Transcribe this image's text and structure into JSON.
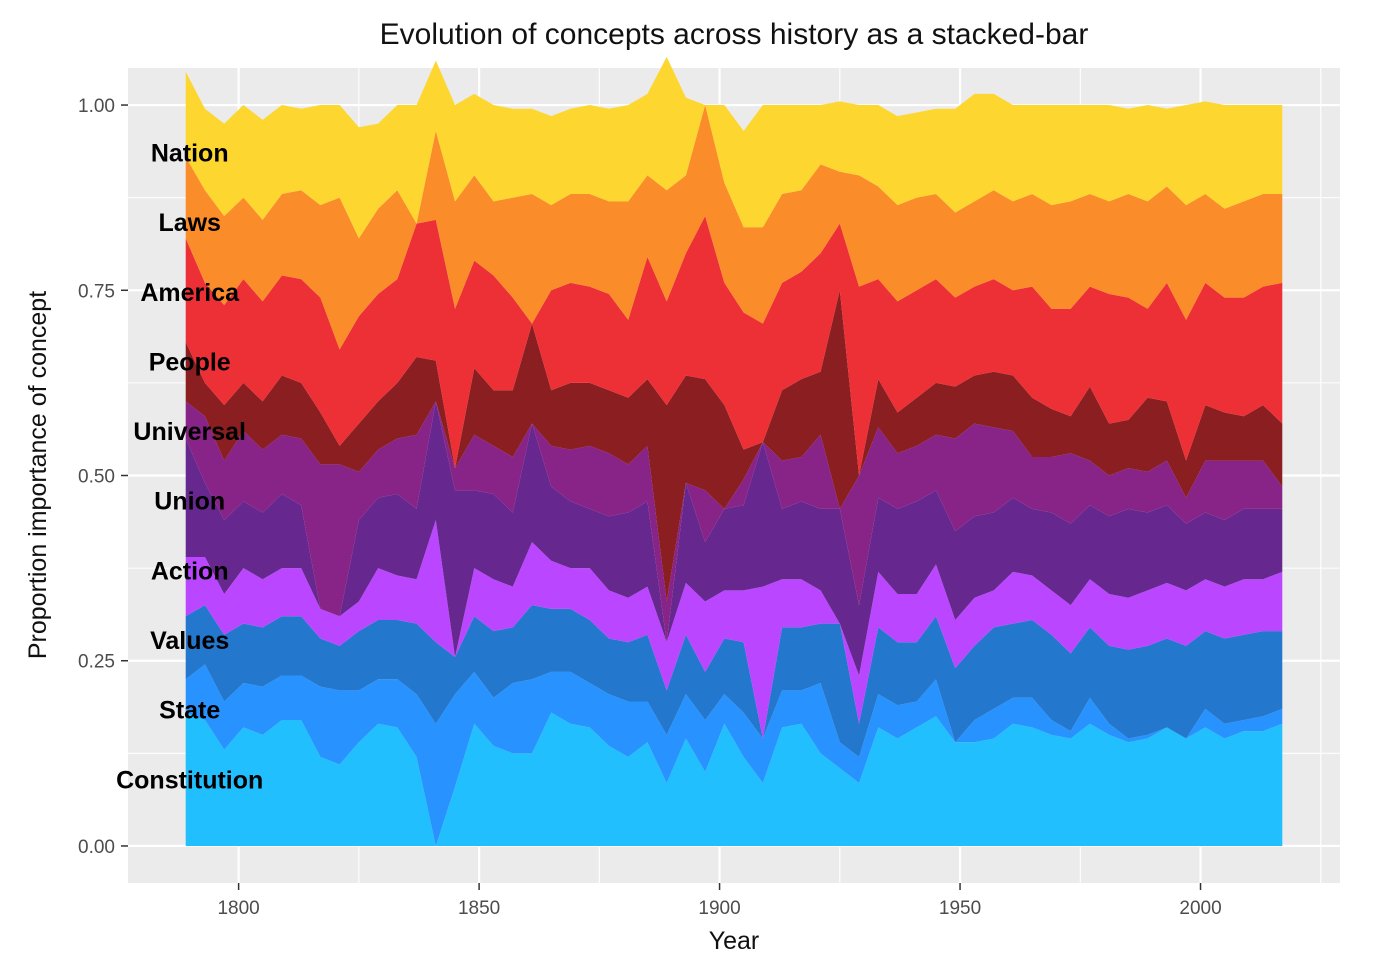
{
  "chart_data": {
    "type": "area",
    "stacked": true,
    "normalized": true,
    "title": "Evolution of concepts across history as a stacked-bar",
    "xlabel": "Year",
    "ylabel": "Proportion importance of concept",
    "xlim": [
      1777,
      2029
    ],
    "ylim": [
      -0.05,
      1.05
    ],
    "xticks": [
      1800,
      1850,
      1900,
      1950,
      2000
    ],
    "xtick_labels": [
      "1800",
      "1850",
      "1900",
      "1950",
      "2000"
    ],
    "yticks": [
      0,
      0.25,
      0.5,
      0.75,
      1
    ],
    "ytick_labels": [
      "0.00",
      "0.25",
      "0.50",
      "0.75",
      "1.00"
    ],
    "grid": true,
    "legend": "none (series labelled on the left edge)",
    "panel_background": "#ebebeb",
    "x": [
      1789,
      1793,
      1797,
      1801,
      1805,
      1809,
      1813,
      1817,
      1821,
      1825,
      1829,
      1833,
      1837,
      1841,
      1845,
      1849,
      1853,
      1857,
      1861,
      1865,
      1869,
      1873,
      1877,
      1881,
      1885,
      1889,
      1893,
      1897,
      1901,
      1905,
      1909,
      1913,
      1917,
      1921,
      1925,
      1929,
      1933,
      1937,
      1941,
      1945,
      1949,
      1953,
      1957,
      1961,
      1965,
      1969,
      1973,
      1977,
      1981,
      1985,
      1989,
      1993,
      1997,
      2001,
      2005,
      2009,
      2013,
      2017
    ],
    "series_order": "bottom to top",
    "series": [
      {
        "name": "Constitution",
        "color": "#22bfff",
        "values": [
          0.18,
          0.17,
          0.13,
          0.16,
          0.15,
          0.17,
          0.17,
          0.12,
          0.11,
          0.14,
          0.165,
          0.16,
          0.12,
          0.0,
          0.08,
          0.165,
          0.135,
          0.125,
          0.125,
          0.18,
          0.165,
          0.16,
          0.135,
          0.12,
          0.14,
          0.085,
          0.145,
          0.1,
          0.165,
          0.12,
          0.085,
          0.16,
          0.165,
          0.125,
          0.105,
          0.085,
          0.16,
          0.145,
          0.16,
          0.175,
          0.14,
          0.14,
          0.145,
          0.165,
          0.16,
          0.15,
          0.145,
          0.165,
          0.15,
          0.14,
          0.145,
          0.16,
          0.145,
          0.16,
          0.145,
          0.155,
          0.155,
          0.165
        ]
      },
      {
        "name": "State",
        "color": "#2893ff",
        "values": [
          0.045,
          0.075,
          0.065,
          0.06,
          0.065,
          0.06,
          0.06,
          0.095,
          0.1,
          0.07,
          0.06,
          0.065,
          0.085,
          0.165,
          0.125,
          0.07,
          0.065,
          0.095,
          0.1,
          0.055,
          0.07,
          0.06,
          0.07,
          0.075,
          0.055,
          0.065,
          0.06,
          0.07,
          0.04,
          0.06,
          0.06,
          0.05,
          0.045,
          0.095,
          0.035,
          0.035,
          0.045,
          0.045,
          0.035,
          0.05,
          0.0,
          0.03,
          0.04,
          0.035,
          0.04,
          0.02,
          0.01,
          0.035,
          0.015,
          0.005,
          0.005,
          0.0,
          0.0,
          0.025,
          0.02,
          0.015,
          0.02,
          0.02
        ]
      },
      {
        "name": "Values",
        "color": "#2377cc",
        "values": [
          0.085,
          0.08,
          0.09,
          0.08,
          0.08,
          0.08,
          0.08,
          0.065,
          0.06,
          0.08,
          0.08,
          0.08,
          0.095,
          0.11,
          0.05,
          0.075,
          0.09,
          0.075,
          0.1,
          0.085,
          0.085,
          0.085,
          0.075,
          0.08,
          0.09,
          0.06,
          0.08,
          0.065,
          0.075,
          0.095,
          0.0,
          0.085,
          0.085,
          0.08,
          0.16,
          0.045,
          0.09,
          0.085,
          0.08,
          0.085,
          0.1,
          0.1,
          0.11,
          0.1,
          0.105,
          0.115,
          0.105,
          0.095,
          0.105,
          0.12,
          0.12,
          0.12,
          0.125,
          0.105,
          0.115,
          0.115,
          0.115,
          0.105
        ]
      },
      {
        "name": "Action",
        "color": "#bb46ff",
        "values": [
          0.08,
          0.065,
          0.055,
          0.075,
          0.065,
          0.065,
          0.065,
          0.04,
          0.04,
          0.04,
          0.07,
          0.06,
          0.06,
          0.165,
          0.0,
          0.065,
          0.07,
          0.055,
          0.085,
          0.065,
          0.055,
          0.07,
          0.065,
          0.06,
          0.065,
          0.065,
          0.07,
          0.095,
          0.065,
          0.07,
          0.205,
          0.065,
          0.065,
          0.045,
          0.0,
          0.065,
          0.075,
          0.065,
          0.065,
          0.07,
          0.065,
          0.065,
          0.05,
          0.07,
          0.06,
          0.06,
          0.065,
          0.065,
          0.07,
          0.07,
          0.075,
          0.075,
          0.075,
          0.07,
          0.07,
          0.075,
          0.07,
          0.08
        ]
      },
      {
        "name": "Union",
        "color": "#66288f",
        "values": [
          0.16,
          0.1,
          0.1,
          0.09,
          0.09,
          0.1,
          0.085,
          0.0,
          0.0,
          0.11,
          0.095,
          0.11,
          0.095,
          0.16,
          0.225,
          0.105,
          0.115,
          0.1,
          0.16,
          0.1,
          0.09,
          0.08,
          0.1,
          0.115,
          0.115,
          0.0,
          0.135,
          0.08,
          0.11,
          0.115,
          0.195,
          0.095,
          0.105,
          0.11,
          0.155,
          0.095,
          0.1,
          0.115,
          0.125,
          0.1,
          0.12,
          0.11,
          0.105,
          0.1,
          0.09,
          0.105,
          0.11,
          0.1,
          0.105,
          0.12,
          0.105,
          0.105,
          0.09,
          0.09,
          0.09,
          0.095,
          0.095,
          0.085
        ]
      },
      {
        "name": "Universal",
        "color": "#882387",
        "values": [
          0.05,
          0.09,
          0.08,
          0.095,
          0.085,
          0.08,
          0.09,
          0.195,
          0.205,
          0.065,
          0.065,
          0.075,
          0.1,
          0.0,
          0.03,
          0.075,
          0.065,
          0.075,
          0.0,
          0.055,
          0.07,
          0.085,
          0.085,
          0.065,
          0.075,
          0.055,
          0.0,
          0.07,
          0.0,
          0.035,
          0.0,
          0.065,
          0.06,
          0.1,
          0.0,
          0.175,
          0.095,
          0.075,
          0.075,
          0.075,
          0.125,
          0.125,
          0.115,
          0.09,
          0.07,
          0.075,
          0.095,
          0.06,
          0.055,
          0.055,
          0.055,
          0.06,
          0.035,
          0.07,
          0.08,
          0.065,
          0.065,
          0.03
        ]
      },
      {
        "name": "People",
        "color": "#8a1e21",
        "values": [
          0.08,
          0.045,
          0.075,
          0.065,
          0.065,
          0.08,
          0.075,
          0.07,
          0.025,
          0.065,
          0.065,
          0.075,
          0.105,
          0.055,
          0.0,
          0.09,
          0.075,
          0.09,
          0.135,
          0.075,
          0.09,
          0.085,
          0.085,
          0.09,
          0.09,
          0.265,
          0.145,
          0.15,
          0.14,
          0.04,
          0.0,
          0.095,
          0.105,
          0.085,
          0.295,
          0.0,
          0.065,
          0.055,
          0.065,
          0.07,
          0.07,
          0.065,
          0.075,
          0.075,
          0.08,
          0.065,
          0.05,
          0.1,
          0.07,
          0.065,
          0.1,
          0.08,
          0.05,
          0.075,
          0.065,
          0.06,
          0.075,
          0.085
        ]
      },
      {
        "name": "America",
        "color": "#ed3035",
        "values": [
          0.14,
          0.135,
          0.135,
          0.14,
          0.135,
          0.135,
          0.14,
          0.155,
          0.13,
          0.145,
          0.145,
          0.14,
          0.18,
          0.19,
          0.215,
          0.145,
          0.155,
          0.125,
          0.0,
          0.135,
          0.135,
          0.13,
          0.13,
          0.105,
          0.165,
          0.14,
          0.165,
          0.22,
          0.165,
          0.185,
          0.16,
          0.145,
          0.145,
          0.16,
          0.09,
          0.255,
          0.135,
          0.15,
          0.145,
          0.14,
          0.12,
          0.12,
          0.125,
          0.115,
          0.15,
          0.135,
          0.145,
          0.135,
          0.175,
          0.165,
          0.12,
          0.16,
          0.19,
          0.165,
          0.155,
          0.16,
          0.16,
          0.19
        ]
      },
      {
        "name": "Laws",
        "color": "#fb8c2a",
        "values": [
          0.11,
          0.125,
          0.12,
          0.11,
          0.11,
          0.11,
          0.12,
          0.125,
          0.205,
          0.105,
          0.115,
          0.12,
          0.0,
          0.12,
          0.145,
          0.115,
          0.1,
          0.135,
          0.175,
          0.115,
          0.12,
          0.125,
          0.125,
          0.16,
          0.11,
          0.15,
          0.105,
          0.15,
          0.135,
          0.115,
          0.13,
          0.12,
          0.11,
          0.12,
          0.07,
          0.15,
          0.125,
          0.13,
          0.125,
          0.115,
          0.115,
          0.115,
          0.12,
          0.12,
          0.125,
          0.14,
          0.145,
          0.125,
          0.125,
          0.14,
          0.145,
          0.13,
          0.155,
          0.12,
          0.12,
          0.13,
          0.125,
          0.12
        ]
      },
      {
        "name": "Nation",
        "color": "#fdd630",
        "values": [
          0.115,
          0.11,
          0.125,
          0.125,
          0.135,
          0.12,
          0.11,
          0.135,
          0.125,
          0.15,
          0.115,
          0.115,
          0.16,
          0.095,
          0.13,
          0.11,
          0.13,
          0.12,
          0.115,
          0.12,
          0.115,
          0.12,
          0.125,
          0.13,
          0.11,
          0.18,
          0.105,
          0.0,
          0.105,
          0.13,
          0.165,
          0.12,
          0.115,
          0.08,
          0.095,
          0.095,
          0.11,
          0.12,
          0.115,
          0.115,
          0.14,
          0.145,
          0.13,
          0.13,
          0.12,
          0.135,
          0.13,
          0.12,
          0.13,
          0.115,
          0.13,
          0.105,
          0.135,
          0.125,
          0.14,
          0.13,
          0.12,
          0.12
        ]
      }
    ]
  }
}
